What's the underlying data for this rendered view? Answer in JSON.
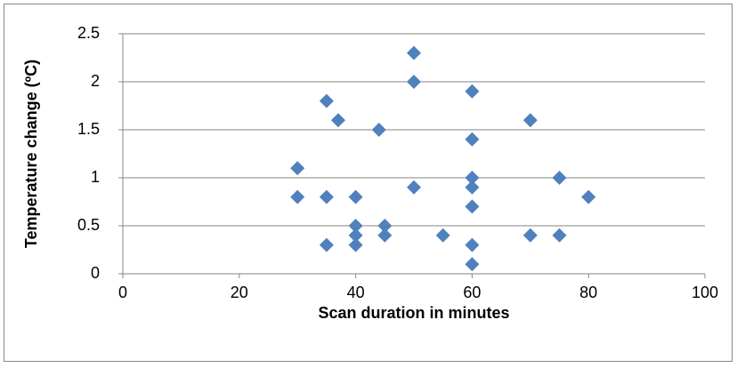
{
  "chart_data": {
    "type": "scatter",
    "xlabel": "Scan duration in minutes",
    "ylabel": "Temperature change (ºC)",
    "series": [
      {
        "color": "#4f81bd",
        "x": [
          30,
          30,
          35,
          35,
          35,
          37,
          40,
          40,
          40,
          40,
          44,
          45,
          45,
          50,
          50,
          50,
          55,
          60,
          60,
          60,
          60,
          60,
          60,
          60,
          70,
          70,
          75,
          75,
          80
        ],
        "values": [
          1.1,
          0.8,
          1.8,
          0.8,
          0.3,
          1.6,
          0.8,
          0.5,
          0.4,
          0.3,
          1.5,
          0.5,
          0.4,
          2.3,
          2.0,
          0.9,
          0.4,
          1.9,
          1.4,
          1.0,
          0.9,
          0.7,
          0.3,
          0.1,
          1.6,
          0.4,
          1.0,
          0.4,
          0.8
        ]
      }
    ],
    "xlim": [
      0,
      100
    ],
    "xticks": [
      0,
      20,
      40,
      60,
      80,
      100
    ],
    "ylim": [
      0,
      2.5
    ],
    "yticks": [
      0,
      0.5,
      1,
      1.5,
      2,
      2.5
    ],
    "grid": true
  }
}
